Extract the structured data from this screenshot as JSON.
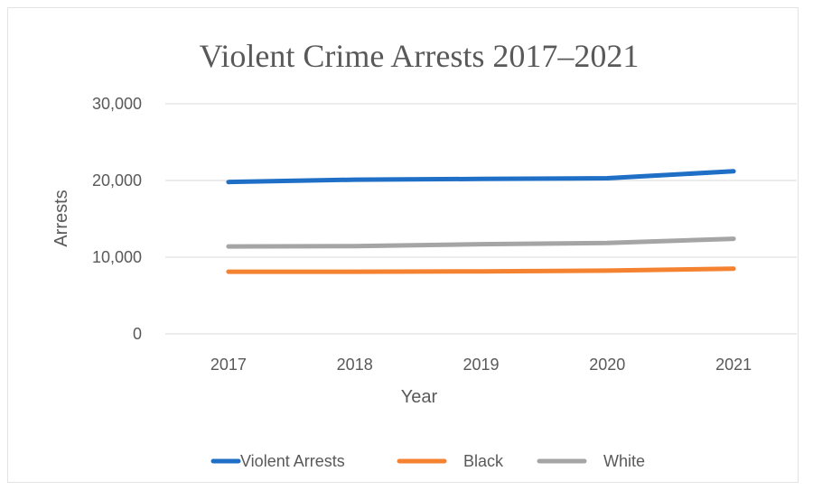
{
  "chart_data": {
    "type": "line",
    "title": "Violent Crime Arrests 2017–2021",
    "xlabel": "Year",
    "ylabel": "Arrests",
    "categories": [
      "2017",
      "2018",
      "2019",
      "2020",
      "2021"
    ],
    "ylim": [
      0,
      30000
    ],
    "yticks": [
      0,
      10000,
      20000,
      30000
    ],
    "ytick_labels": [
      "0",
      "10,000",
      "20,000",
      "30,000"
    ],
    "grid": true,
    "legend_position": "bottom",
    "series": [
      {
        "name": "Violent Arrests",
        "color": "#1f6fc6",
        "values": [
          19800,
          20100,
          20200,
          20300,
          21200
        ]
      },
      {
        "name": "Black",
        "color": "#f58231",
        "values": [
          8100,
          8100,
          8150,
          8250,
          8500
        ]
      },
      {
        "name": "White",
        "color": "#a5a5a5",
        "values": [
          11400,
          11450,
          11700,
          11850,
          12400
        ]
      }
    ]
  }
}
